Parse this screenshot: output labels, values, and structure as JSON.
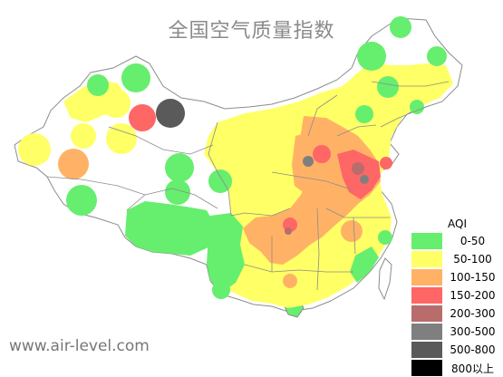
{
  "title": "全国空气质量指数",
  "watermark": "www.air-level.com",
  "legend": {
    "title": "AQI",
    "items": [
      {
        "label": "0-50",
        "color": "#66ee6f"
      },
      {
        "label": "50-100",
        "color": "#ffff66"
      },
      {
        "label": "100-150",
        "color": "#ffb266"
      },
      {
        "label": "150-200",
        "color": "#ff6666"
      },
      {
        "label": "200-300",
        "color": "#b86c6c"
      },
      {
        "label": "300-500",
        "color": "#7f7f7f"
      },
      {
        "label": "500-800",
        "color": "#5a5a5a"
      },
      {
        "label": "800以上",
        "color": "#000000"
      }
    ]
  },
  "colors": {
    "good": "#66ee6f",
    "moderate": "#ffff66",
    "sensitive": "#ffb266",
    "unhealthy": "#ff6666",
    "very_unhealthy": "#b86c6c",
    "hazardous": "#7f7f7f",
    "severe": "#5a5a5a",
    "beyond": "#000000",
    "no_data": "#ffffff",
    "border": "#8c8c8c"
  }
}
